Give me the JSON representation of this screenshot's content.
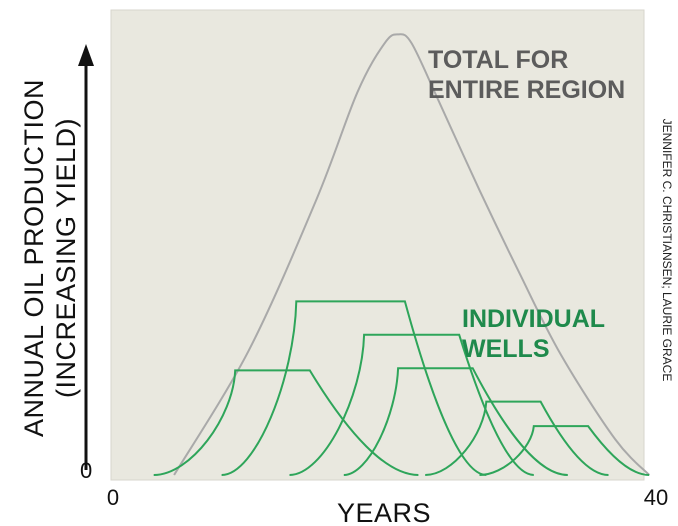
{
  "chart_data": {
    "type": "line",
    "title": "",
    "xlabel": "YEARS",
    "ylabel_lines": [
      "ANNUAL OIL PRODUCTION",
      "(INCREASING YIELD)"
    ],
    "x_ticks": [
      "0",
      "40"
    ],
    "y_ticks": [
      "0"
    ],
    "xlim": [
      0,
      40
    ],
    "ylim": [
      0,
      1
    ],
    "grid": false,
    "annotations": {
      "total": [
        "TOTAL FOR",
        "ENTIRE REGION"
      ],
      "wells": [
        "INDIVIDUAL",
        "WELLS"
      ]
    },
    "credit": "JENNIFER C. CHRISTIANSEN; LAURIE GRACE",
    "colors": {
      "total": "#a9a9a9",
      "wells": "#2ea55a",
      "panel": "#e9e8df"
    },
    "total_curve": {
      "x": [
        4.5,
        10,
        15,
        18,
        20,
        21,
        22,
        24,
        27,
        30,
        33,
        37,
        39.5
      ],
      "y": [
        0.0,
        0.28,
        0.62,
        0.86,
        0.97,
        0.99,
        0.97,
        0.84,
        0.64,
        0.45,
        0.27,
        0.08,
        0.0
      ]
    },
    "wells": [
      {
        "start": 3,
        "peak": 9,
        "plateau_end": 14.5,
        "end": 22.5,
        "yield": 0.235
      },
      {
        "start": 8,
        "peak": 13.5,
        "plateau_end": 21.5,
        "end": 27.5,
        "yield": 0.39
      },
      {
        "start": 13,
        "peak": 18.5,
        "plateau_end": 25.5,
        "end": 31,
        "yield": 0.315
      },
      {
        "start": 17,
        "peak": 21,
        "plateau_end": 26.5,
        "end": 33.5,
        "yield": 0.24
      },
      {
        "start": 23,
        "peak": 27.5,
        "plateau_end": 31.5,
        "end": 36.5,
        "yield": 0.165
      },
      {
        "start": 27,
        "peak": 31,
        "plateau_end": 35,
        "end": 39.5,
        "yield": 0.11
      }
    ]
  }
}
